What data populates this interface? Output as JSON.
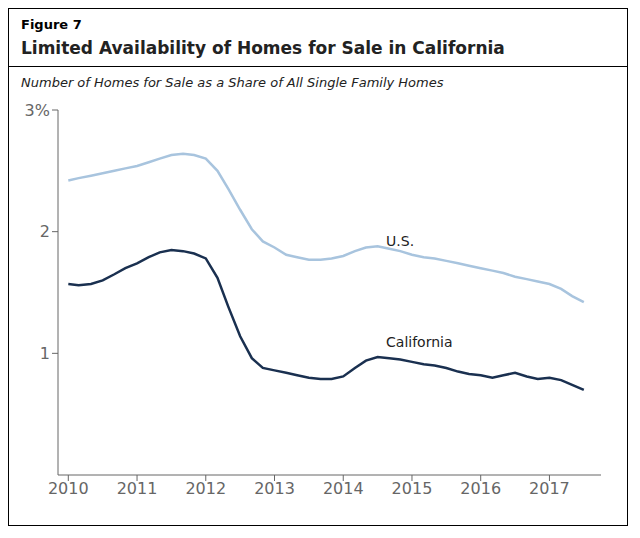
{
  "chart_data": {
    "type": "line",
    "figure_label": "Figure 7",
    "title": "Limited Availability of Homes for Sale in California",
    "subtitle": "Number of Homes for Sale as a Share of All Single Family Homes",
    "x": [
      2010.0,
      2010.15,
      2010.33,
      2010.5,
      2010.67,
      2010.83,
      2011.0,
      2011.17,
      2011.33,
      2011.5,
      2011.67,
      2011.83,
      2012.0,
      2012.17,
      2012.33,
      2012.5,
      2012.67,
      2012.83,
      2013.0,
      2013.17,
      2013.33,
      2013.5,
      2013.67,
      2013.83,
      2014.0,
      2014.17,
      2014.33,
      2014.5,
      2014.67,
      2014.83,
      2015.0,
      2015.17,
      2015.33,
      2015.5,
      2015.67,
      2015.83,
      2016.0,
      2016.17,
      2016.33,
      2016.5,
      2016.67,
      2016.83,
      2017.0,
      2017.17,
      2017.33,
      2017.5
    ],
    "series": [
      {
        "name": "U.S.",
        "color": "#a8c4de",
        "values": [
          2.42,
          2.44,
          2.46,
          2.48,
          2.5,
          2.52,
          2.54,
          2.57,
          2.6,
          2.63,
          2.64,
          2.63,
          2.6,
          2.5,
          2.35,
          2.18,
          2.02,
          1.92,
          1.87,
          1.81,
          1.79,
          1.77,
          1.77,
          1.78,
          1.8,
          1.84,
          1.87,
          1.88,
          1.86,
          1.84,
          1.81,
          1.79,
          1.78,
          1.76,
          1.74,
          1.72,
          1.7,
          1.68,
          1.66,
          1.63,
          1.61,
          1.59,
          1.57,
          1.53,
          1.47,
          1.42
        ]
      },
      {
        "name": "California",
        "color": "#1a3050",
        "values": [
          1.57,
          1.56,
          1.57,
          1.6,
          1.65,
          1.7,
          1.74,
          1.79,
          1.83,
          1.85,
          1.84,
          1.82,
          1.78,
          1.62,
          1.38,
          1.14,
          0.96,
          0.88,
          0.86,
          0.84,
          0.82,
          0.8,
          0.79,
          0.79,
          0.81,
          0.88,
          0.94,
          0.97,
          0.96,
          0.95,
          0.93,
          0.91,
          0.9,
          0.88,
          0.85,
          0.83,
          0.82,
          0.8,
          0.82,
          0.84,
          0.81,
          0.79,
          0.8,
          0.78,
          0.74,
          0.7
        ]
      }
    ],
    "annotations": [
      {
        "text": "U.S.",
        "x": 2014.55,
        "y": 1.92
      },
      {
        "text": "California",
        "x": 2014.55,
        "y": 1.09
      }
    ],
    "xlim": [
      2009.85,
      2017.75
    ],
    "xticks": [
      2010,
      2011,
      2012,
      2013,
      2014,
      2015,
      2016,
      2017
    ],
    "ylim": [
      0,
      3.0
    ],
    "yticks": [
      1,
      2,
      {
        "value": 3,
        "label": "3%"
      }
    ],
    "grid": false
  }
}
